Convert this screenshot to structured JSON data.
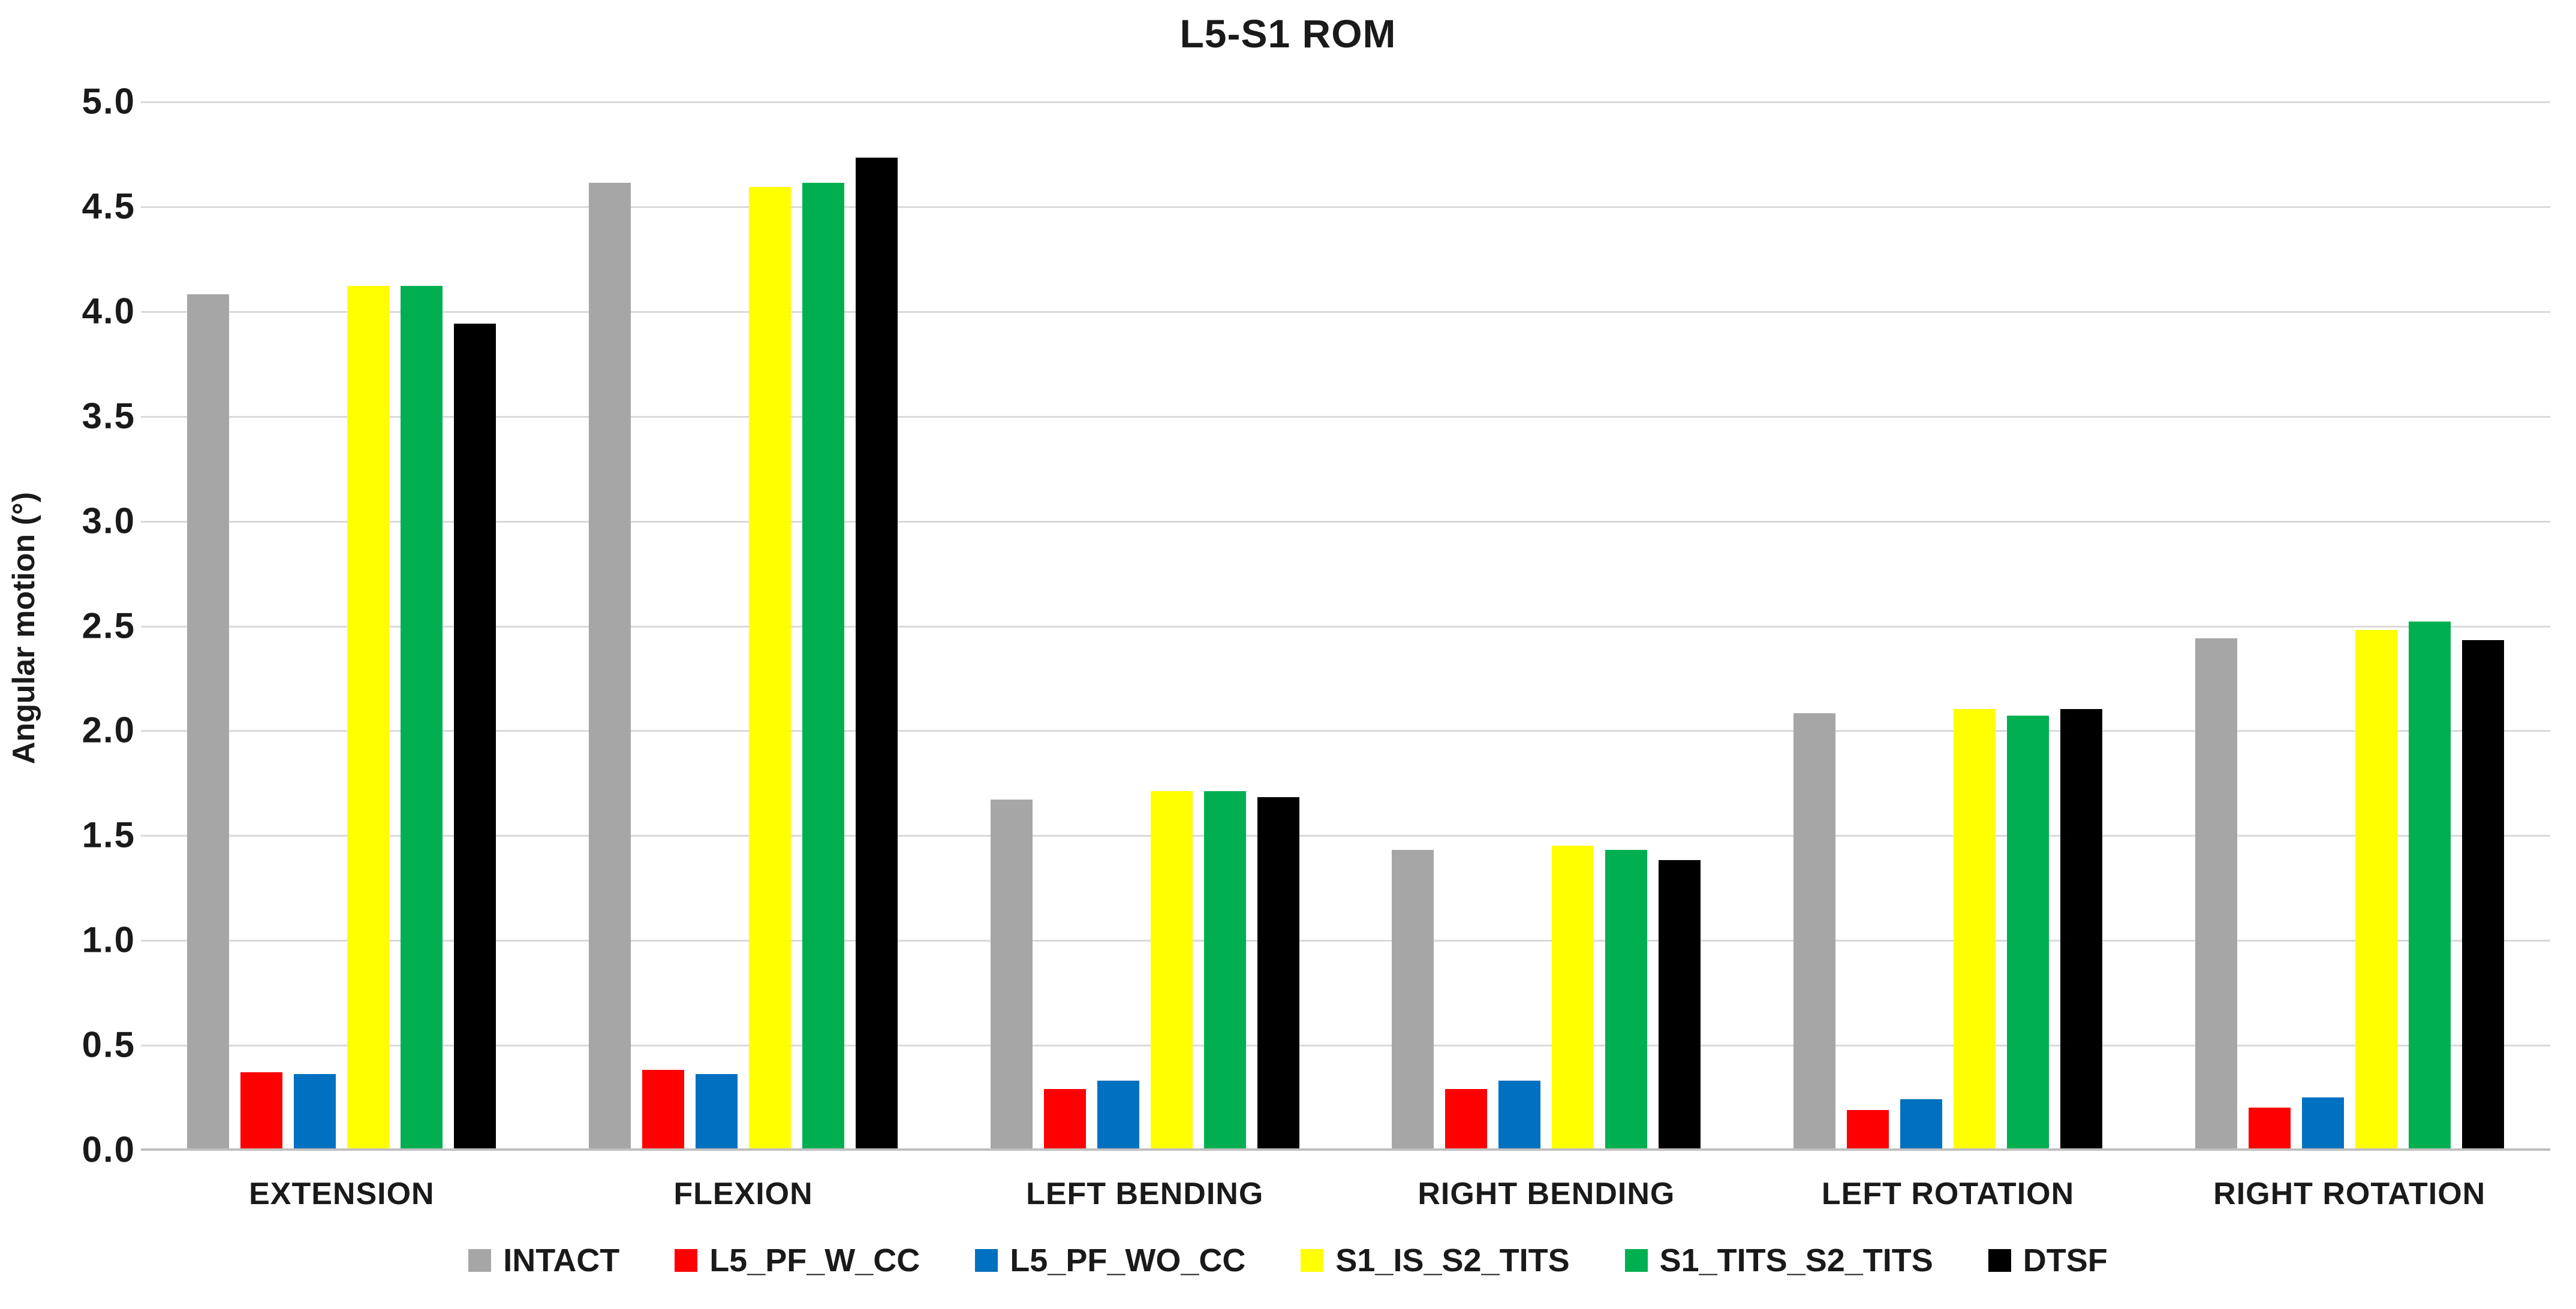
{
  "title": "L5-S1 ROM",
  "colors": {
    "gridline": "#d9d9d9",
    "axis_line": "#bfbfbf",
    "text": "#1a1a1a"
  },
  "chart_data": {
    "type": "bar",
    "title": "L5-S1 ROM",
    "xlabel": "",
    "ylabel": "Angular motion (°)",
    "ylim": [
      0.0,
      5.0
    ],
    "ytick_step": 0.5,
    "ytick_labels": [
      "0.0",
      "0.5",
      "1.0",
      "1.5",
      "2.0",
      "2.5",
      "3.0",
      "3.5",
      "4.0",
      "4.5",
      "5.0"
    ],
    "grid": true,
    "legend_position": "bottom",
    "categories": [
      "EXTENSION",
      "FLEXION",
      "LEFT BENDING",
      "RIGHT BENDING",
      "LEFT ROTATION",
      "RIGHT ROTATION"
    ],
    "series": [
      {
        "name": "INTACT",
        "color": "#a6a6a6",
        "values": [
          4.08,
          4.61,
          1.67,
          1.43,
          2.08,
          2.44
        ]
      },
      {
        "name": "L5_PF_W_CC",
        "color": "#ff0000",
        "values": [
          0.37,
          0.38,
          0.29,
          0.29,
          0.19,
          0.2
        ]
      },
      {
        "name": "L5_PF_WO_CC",
        "color": "#0070c0",
        "values": [
          0.36,
          0.36,
          0.33,
          0.33,
          0.24,
          0.25
        ]
      },
      {
        "name": "S1_IS_S2_TITS",
        "color": "#ffff00",
        "values": [
          4.12,
          4.59,
          1.71,
          1.45,
          2.1,
          2.48
        ]
      },
      {
        "name": "S1_TITS_S2_TITS",
        "color": "#00b050",
        "values": [
          4.12,
          4.61,
          1.71,
          1.43,
          2.07,
          2.52
        ]
      },
      {
        "name": "DTSF",
        "color": "#000000",
        "values": [
          3.94,
          4.73,
          1.68,
          1.38,
          2.1,
          2.43
        ]
      }
    ]
  }
}
